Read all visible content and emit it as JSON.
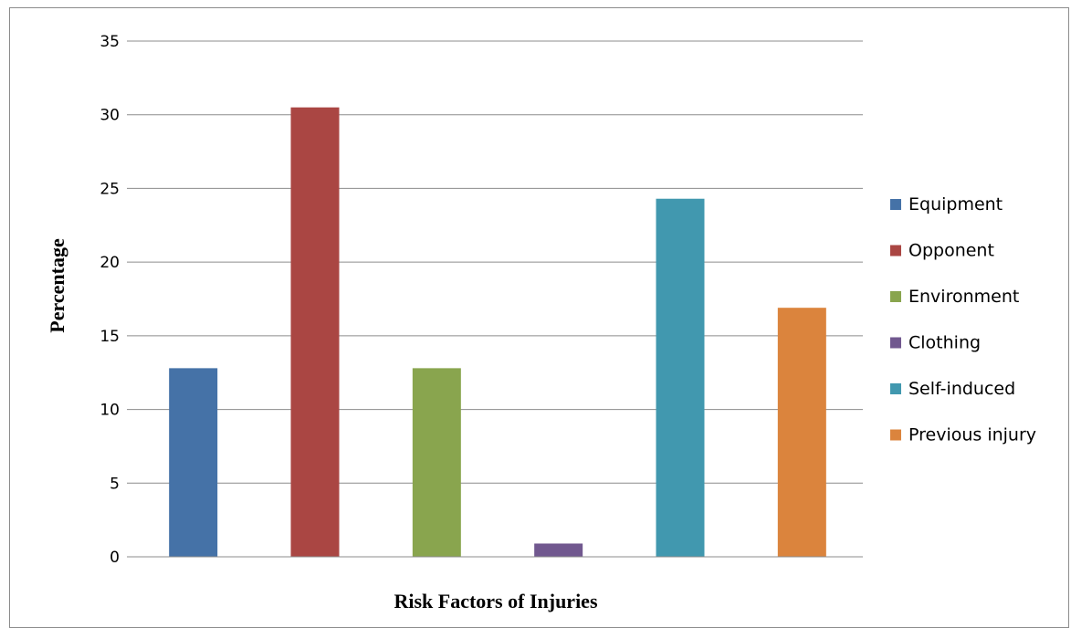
{
  "chart_data": {
    "type": "bar",
    "title": "",
    "xlabel": "Risk Factors of Injuries",
    "ylabel": "Percentage",
    "ylim": [
      0,
      35
    ],
    "yticks": [
      0,
      5,
      10,
      15,
      20,
      25,
      30,
      35
    ],
    "grid": true,
    "legend_position": "right",
    "series": [
      {
        "name": "Equipment",
        "value": 12.8,
        "color": "#4572a7"
      },
      {
        "name": "Opponent",
        "value": 30.5,
        "color": "#aa4643"
      },
      {
        "name": "Environment",
        "value": 12.8,
        "color": "#89a54e"
      },
      {
        "name": "Clothing",
        "value": 0.9,
        "color": "#71588f"
      },
      {
        "name": "Self-induced",
        "value": 24.3,
        "color": "#4198af"
      },
      {
        "name": "Previous injury",
        "value": 16.9,
        "color": "#db843d"
      }
    ]
  }
}
